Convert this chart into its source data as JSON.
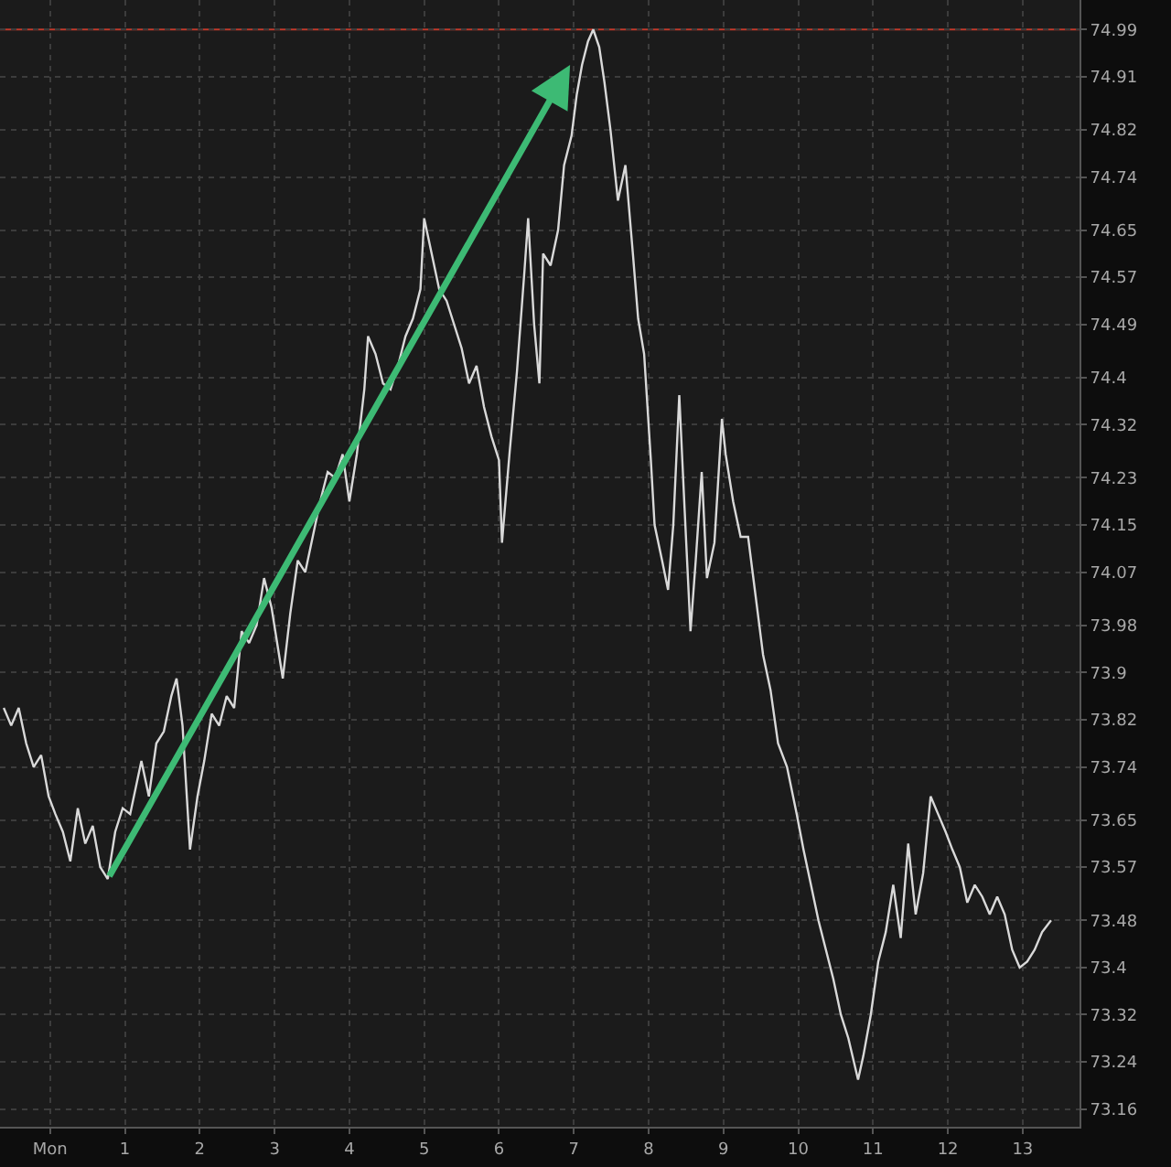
{
  "chart_data": {
    "type": "line",
    "xlim": [
      -0.67,
      13.76
    ],
    "xticks": [
      {
        "value": 0,
        "label": "Mon"
      },
      1,
      2,
      3,
      4,
      5,
      6,
      7,
      8,
      9,
      10,
      11,
      12,
      13
    ],
    "ylim": [
      73.13,
      75.04
    ],
    "yticks": [
      74.99,
      74.91,
      74.82,
      74.74,
      74.65,
      74.57,
      74.49,
      74.4,
      74.32,
      74.23,
      74.15,
      74.07,
      73.98,
      73.9,
      73.82,
      73.74,
      73.65,
      73.57,
      73.48,
      73.4,
      73.32,
      73.24,
      73.16
    ],
    "grid": true,
    "line_style": "solid",
    "ref_lines": [
      {
        "axis": "y",
        "value": 74.99,
        "color": "#c0392b"
      }
    ],
    "series": [
      {
        "color": "#d9d9d9",
        "x": [
          -0.62,
          -0.52,
          -0.42,
          -0.32,
          -0.22,
          -0.12,
          -0.02,
          0.07,
          0.17,
          0.27,
          0.37,
          0.47,
          0.57,
          0.67,
          0.77,
          0.87,
          0.97,
          1.07,
          1.22,
          1.32,
          1.42,
          1.52,
          1.62,
          1.69,
          1.77,
          1.87,
          1.97,
          2.06,
          2.16,
          2.26,
          2.36,
          2.46,
          2.56,
          2.66,
          2.76,
          2.86,
          2.96,
          3.06,
          3.11,
          3.21,
          3.31,
          3.41,
          3.51,
          3.61,
          3.71,
          3.81,
          3.91,
          4.0,
          4.1,
          4.2,
          4.25,
          4.35,
          4.45,
          4.55,
          4.65,
          4.75,
          4.85,
          4.95,
          5.0,
          5.1,
          5.2,
          5.3,
          5.4,
          5.5,
          5.6,
          5.7,
          5.8,
          5.9,
          6.0,
          6.04,
          6.14,
          6.24,
          6.34,
          6.39,
          6.47,
          6.54,
          6.59,
          6.69,
          6.79,
          6.87,
          6.97,
          7.04,
          7.11,
          7.19,
          7.26,
          7.34,
          7.41,
          7.49,
          7.59,
          7.69,
          7.79,
          7.86,
          7.94,
          8.03,
          8.08,
          8.18,
          8.26,
          8.33,
          8.41,
          8.48,
          8.56,
          8.63,
          8.71,
          8.78,
          8.88,
          8.98,
          9.03,
          9.13,
          9.23,
          9.33,
          9.43,
          9.53,
          9.63,
          9.73,
          9.85,
          9.98,
          10.07,
          10.17,
          10.27,
          10.37,
          10.47,
          10.57,
          10.67,
          10.8,
          10.87,
          10.97,
          11.07,
          11.17,
          11.27,
          11.37,
          11.47,
          11.57,
          11.67,
          11.77,
          11.87,
          11.97,
          12.06,
          12.16,
          12.26,
          12.36,
          12.46,
          12.56,
          12.66,
          12.76,
          12.86,
          12.96,
          13.06,
          13.16,
          13.26,
          13.38
        ],
        "values": [
          73.84,
          73.81,
          73.84,
          73.78,
          73.74,
          73.76,
          73.69,
          73.66,
          73.63,
          73.58,
          73.67,
          73.61,
          73.64,
          73.57,
          73.55,
          73.63,
          73.67,
          73.66,
          73.75,
          73.69,
          73.78,
          73.8,
          73.86,
          73.89,
          73.81,
          73.6,
          73.69,
          73.75,
          73.83,
          73.81,
          73.86,
          73.84,
          73.97,
          73.95,
          73.98,
          74.06,
          74.01,
          73.93,
          73.89,
          74.0,
          74.09,
          74.07,
          74.13,
          74.19,
          74.24,
          74.23,
          74.27,
          74.19,
          74.27,
          74.38,
          74.47,
          74.44,
          74.39,
          74.38,
          74.42,
          74.47,
          74.5,
          74.55,
          74.67,
          74.61,
          74.55,
          74.53,
          74.49,
          74.45,
          74.39,
          74.42,
          74.35,
          74.3,
          74.26,
          74.12,
          74.27,
          74.41,
          74.58,
          74.67,
          74.49,
          74.39,
          74.61,
          74.59,
          74.65,
          74.76,
          74.81,
          74.88,
          74.93,
          74.97,
          74.99,
          74.96,
          74.9,
          74.82,
          74.7,
          74.76,
          74.61,
          74.5,
          74.44,
          74.26,
          74.15,
          74.09,
          74.04,
          74.15,
          74.37,
          74.18,
          73.97,
          74.09,
          74.24,
          74.06,
          74.12,
          74.33,
          74.27,
          74.19,
          74.13,
          74.13,
          74.03,
          73.93,
          73.87,
          73.78,
          73.74,
          73.66,
          73.6,
          73.54,
          73.48,
          73.43,
          73.38,
          73.32,
          73.28,
          73.21,
          73.25,
          73.32,
          73.41,
          73.46,
          73.54,
          73.45,
          73.61,
          73.49,
          73.56,
          73.69,
          73.66,
          73.63,
          73.6,
          73.57,
          73.51,
          73.54,
          73.52,
          73.49,
          73.52,
          73.49,
          73.43,
          73.4,
          73.41,
          73.43,
          73.46,
          73.48
        ]
      }
    ]
  }
}
